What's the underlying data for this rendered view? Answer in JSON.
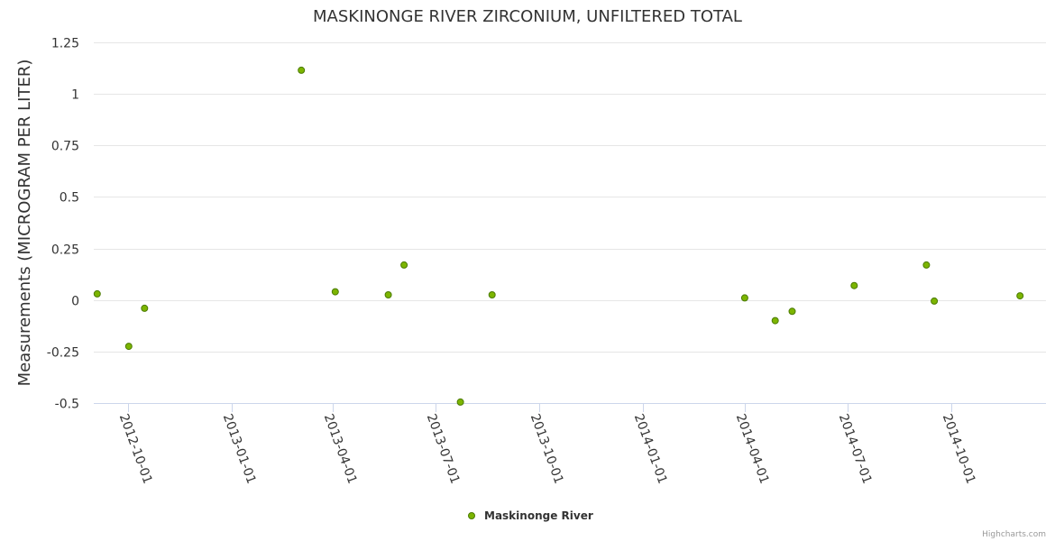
{
  "chart_data": {
    "type": "scatter",
    "title": "MASKINONGE RIVER ZIRCONIUM, UNFILTERED TOTAL",
    "xlabel": "",
    "ylabel": "Measurements (MICROGRAM PER LITER)",
    "ylim": [
      -0.5,
      1.25
    ],
    "y_ticks": [
      "1.25",
      "1",
      "0.75",
      "0.5",
      "0.25",
      "0",
      "-0.25",
      "-0.5"
    ],
    "y_tick_values": [
      1.25,
      1,
      0.75,
      0.5,
      0.25,
      0,
      -0.25,
      -0.5
    ],
    "x_ticks": [
      "2012-10-01",
      "2013-01-01",
      "2013-04-01",
      "2013-07-01",
      "2013-10-01",
      "2014-01-01",
      "2014-04-01",
      "2014-07-01",
      "2014-10-01"
    ],
    "x_range": [
      "2012-09-01",
      "2014-12-24"
    ],
    "grid": true,
    "legend_position": "bottom-center",
    "series": [
      {
        "name": "Maskinonge River",
        "color": "#7cb500",
        "points": [
          {
            "x": "2012-09-04",
            "y": 0.03
          },
          {
            "x": "2012-10-02",
            "y": -0.225
          },
          {
            "x": "2012-10-16",
            "y": -0.04
          },
          {
            "x": "2013-03-04",
            "y": 1.115
          },
          {
            "x": "2013-04-03",
            "y": 0.04
          },
          {
            "x": "2013-05-20",
            "y": 0.025
          },
          {
            "x": "2013-06-03",
            "y": 0.17
          },
          {
            "x": "2013-07-23",
            "y": -0.495
          },
          {
            "x": "2013-08-20",
            "y": 0.025
          },
          {
            "x": "2014-04-01",
            "y": 0.01
          },
          {
            "x": "2014-04-28",
            "y": -0.1
          },
          {
            "x": "2014-05-13",
            "y": -0.055
          },
          {
            "x": "2014-07-07",
            "y": 0.07
          },
          {
            "x": "2014-09-09",
            "y": 0.17
          },
          {
            "x": "2014-09-16",
            "y": -0.005
          },
          {
            "x": "2014-12-01",
            "y": 0.02
          }
        ]
      }
    ]
  },
  "credits": "Highcharts.com"
}
